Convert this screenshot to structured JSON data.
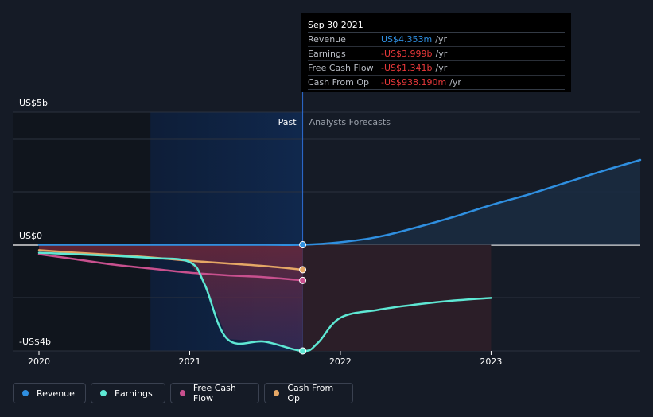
{
  "tooltip": {
    "date": "Sep 30 2021",
    "rows": [
      {
        "label": "Revenue",
        "value": "US$4.353m",
        "unit": "/yr",
        "color": "#2f8fe0"
      },
      {
        "label": "Earnings",
        "value": "-US$3.999b",
        "unit": "/yr",
        "color": "#e8383a"
      },
      {
        "label": "Free Cash Flow",
        "value": "-US$1.341b",
        "unit": "/yr",
        "color": "#e8383a"
      },
      {
        "label": "Cash From Op",
        "value": "-US$938.190m",
        "unit": "/yr",
        "color": "#e8383a"
      }
    ]
  },
  "regions": {
    "past": "Past",
    "forecast": "Analysts Forecasts"
  },
  "legend": [
    {
      "label": "Revenue",
      "color": "#2f8fe0"
    },
    {
      "label": "Earnings",
      "color": "#5ee8d4"
    },
    {
      "label": "Free Cash Flow",
      "color": "#c8508e"
    },
    {
      "label": "Cash From Op",
      "color": "#e5a765"
    }
  ],
  "chart_data": {
    "type": "line",
    "y_tick_labels": [
      {
        "value": 5,
        "label": "US$5b"
      },
      {
        "value": 0,
        "label": "US$0"
      },
      {
        "value": -4,
        "label": "-US$4b"
      }
    ],
    "x_tick_labels": [
      {
        "value": 2020,
        "label": "2020"
      },
      {
        "value": 2021,
        "label": "2021"
      },
      {
        "value": 2022,
        "label": "2022"
      },
      {
        "value": 2023,
        "label": "2023"
      }
    ],
    "xlim": [
      2020,
      2023.99
    ],
    "ylim": [
      -4.0,
      5.0
    ],
    "divider_x": 2021.75,
    "past_highlight_start": 2020.74,
    "series": [
      {
        "name": "Revenue",
        "color": "#2f8fe0",
        "points": [
          [
            2020.0,
            0.004
          ],
          [
            2020.5,
            0.004
          ],
          [
            2021.0,
            0.004
          ],
          [
            2021.5,
            0.004
          ],
          [
            2021.75,
            0.004
          ],
          [
            2022.0,
            0.1
          ],
          [
            2022.25,
            0.3
          ],
          [
            2022.5,
            0.65
          ],
          [
            2022.75,
            1.05
          ],
          [
            2023.0,
            1.5
          ],
          [
            2023.25,
            1.9
          ],
          [
            2023.5,
            2.35
          ],
          [
            2023.75,
            2.8
          ],
          [
            2023.99,
            3.2
          ]
        ]
      },
      {
        "name": "Earnings",
        "color": "#5ee8d4",
        "points": [
          [
            2020.0,
            -0.3
          ],
          [
            2020.5,
            -0.42
          ],
          [
            2020.75,
            -0.5
          ],
          [
            2021.0,
            -0.65
          ],
          [
            2021.1,
            -1.5
          ],
          [
            2021.25,
            -3.55
          ],
          [
            2021.5,
            -3.65
          ],
          [
            2021.75,
            -3.999
          ],
          [
            2021.85,
            -3.7
          ],
          [
            2022.0,
            -2.75
          ],
          [
            2022.25,
            -2.45
          ],
          [
            2022.5,
            -2.25
          ],
          [
            2022.75,
            -2.1
          ],
          [
            2023.0,
            -2.0
          ]
        ]
      },
      {
        "name": "Free Cash Flow",
        "color": "#c8508e",
        "points": [
          [
            2020.0,
            -0.35
          ],
          [
            2020.25,
            -0.55
          ],
          [
            2020.5,
            -0.75
          ],
          [
            2020.75,
            -0.9
          ],
          [
            2021.0,
            -1.05
          ],
          [
            2021.25,
            -1.15
          ],
          [
            2021.5,
            -1.22
          ],
          [
            2021.75,
            -1.341
          ]
        ]
      },
      {
        "name": "Cash From Op",
        "color": "#e5a765",
        "points": [
          [
            2020.0,
            -0.2
          ],
          [
            2020.25,
            -0.3
          ],
          [
            2020.5,
            -0.38
          ],
          [
            2020.75,
            -0.48
          ],
          [
            2021.0,
            -0.6
          ],
          [
            2021.25,
            -0.7
          ],
          [
            2021.5,
            -0.8
          ],
          [
            2021.75,
            -0.938
          ]
        ]
      }
    ],
    "forecast_earnings_band": {
      "x_end": 2023.0,
      "y_top": 0.0
    }
  }
}
